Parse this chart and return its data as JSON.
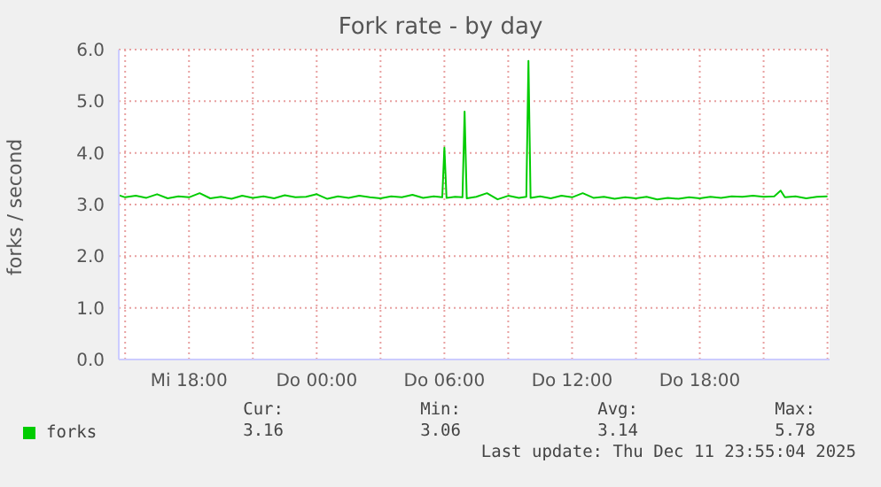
{
  "chart_data": {
    "type": "line",
    "title": "Fork rate - by day",
    "ylabel": "forks / second",
    "x": [
      "2025-12-10T14:42",
      "2025-12-10T15:00",
      "2025-12-10T15:30",
      "2025-12-10T16:00",
      "2025-12-10T16:30",
      "2025-12-10T17:00",
      "2025-12-10T17:30",
      "2025-12-10T18:00",
      "2025-12-10T18:30",
      "2025-12-10T19:00",
      "2025-12-10T19:30",
      "2025-12-10T20:00",
      "2025-12-10T20:30",
      "2025-12-10T21:00",
      "2025-12-10T21:30",
      "2025-12-10T22:00",
      "2025-12-10T22:30",
      "2025-12-10T23:00",
      "2025-12-10T23:30",
      "2025-12-11T00:00",
      "2025-12-11T00:30",
      "2025-12-11T01:00",
      "2025-12-11T01:30",
      "2025-12-11T02:00",
      "2025-12-11T02:30",
      "2025-12-11T03:00",
      "2025-12-11T03:30",
      "2025-12-11T04:00",
      "2025-12-11T04:30",
      "2025-12-11T05:00",
      "2025-12-11T05:30",
      "2025-12-11T05:54",
      "2025-12-11T06:00",
      "2025-12-11T06:06",
      "2025-12-11T06:30",
      "2025-12-11T06:51",
      "2025-12-11T06:57",
      "2025-12-11T07:03",
      "2025-12-11T07:30",
      "2025-12-11T08:00",
      "2025-12-11T08:30",
      "2025-12-11T09:00",
      "2025-12-11T09:30",
      "2025-12-11T09:51",
      "2025-12-11T09:57",
      "2025-12-11T10:03",
      "2025-12-11T10:30",
      "2025-12-11T11:00",
      "2025-12-11T11:30",
      "2025-12-11T12:00",
      "2025-12-11T12:30",
      "2025-12-11T13:00",
      "2025-12-11T13:30",
      "2025-12-11T14:00",
      "2025-12-11T14:30",
      "2025-12-11T15:00",
      "2025-12-11T15:30",
      "2025-12-11T16:00",
      "2025-12-11T16:30",
      "2025-12-11T17:00",
      "2025-12-11T17:30",
      "2025-12-11T18:00",
      "2025-12-11T18:30",
      "2025-12-11T19:00",
      "2025-12-11T19:30",
      "2025-12-11T20:00",
      "2025-12-11T20:30",
      "2025-12-11T21:00",
      "2025-12-11T21:30",
      "2025-12-11T21:48",
      "2025-12-11T22:00",
      "2025-12-11T22:30",
      "2025-12-11T23:00",
      "2025-12-11T23:30",
      "2025-12-12T00:00"
    ],
    "series": [
      {
        "name": "forks",
        "color": "#00cc00",
        "values": [
          3.18,
          3.14,
          3.17,
          3.13,
          3.2,
          3.12,
          3.16,
          3.14,
          3.22,
          3.12,
          3.15,
          3.11,
          3.17,
          3.13,
          3.16,
          3.12,
          3.18,
          3.14,
          3.15,
          3.2,
          3.11,
          3.16,
          3.13,
          3.17,
          3.14,
          3.12,
          3.16,
          3.14,
          3.19,
          3.13,
          3.16,
          3.14,
          4.1,
          3.13,
          3.15,
          3.14,
          4.8,
          3.12,
          3.15,
          3.22,
          3.1,
          3.17,
          3.13,
          3.15,
          5.78,
          3.13,
          3.16,
          3.12,
          3.17,
          3.14,
          3.22,
          3.13,
          3.15,
          3.11,
          3.14,
          3.12,
          3.15,
          3.1,
          3.13,
          3.11,
          3.14,
          3.12,
          3.15,
          3.13,
          3.16,
          3.15,
          3.17,
          3.15,
          3.16,
          3.27,
          3.14,
          3.16,
          3.12,
          3.15,
          3.16
        ]
      }
    ],
    "xlim": [
      "2025-12-10T14:42",
      "2025-12-12T00:06"
    ],
    "xticks": [
      {
        "value": "2025-12-10T18:00",
        "label": "Mi 18:00"
      },
      {
        "value": "2025-12-11T00:00",
        "label": "Do 00:00"
      },
      {
        "value": "2025-12-11T06:00",
        "label": "Do 06:00"
      },
      {
        "value": "2025-12-11T12:00",
        "label": "Do 12:00"
      },
      {
        "value": "2025-12-11T18:00",
        "label": "Do 18:00"
      }
    ],
    "ylim": [
      0,
      6
    ],
    "yticks": [
      {
        "value": 0,
        "label": "0.0"
      },
      {
        "value": 1,
        "label": "1.0"
      },
      {
        "value": 2,
        "label": "2.0"
      },
      {
        "value": 3,
        "label": "3.0"
      },
      {
        "value": 4,
        "label": "4.0"
      },
      {
        "value": 5,
        "label": "5.0"
      },
      {
        "value": 6,
        "label": "6.0"
      }
    ],
    "grid": true,
    "legend": "bottom left",
    "marker": "none",
    "line_style": "solid",
    "annotations": [
      "Cur:",
      "Min:",
      "Avg:",
      "Max:",
      "3.16",
      "3.06",
      "3.14",
      "5.78",
      "Last update: Thu Dec 11 23:55:04 2025"
    ]
  }
}
